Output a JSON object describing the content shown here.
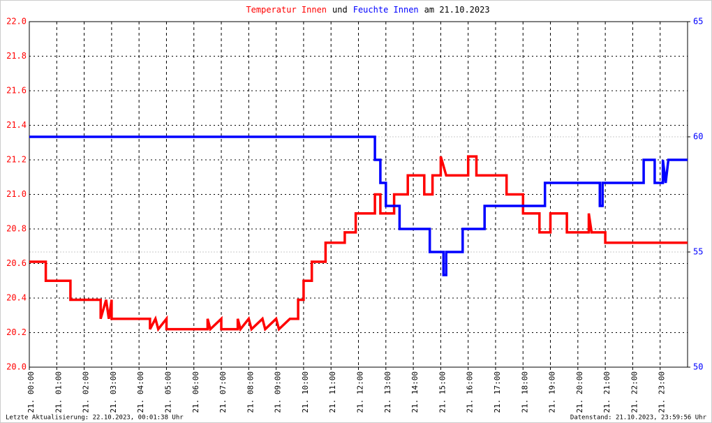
{
  "chart_data": {
    "type": "line",
    "title": [
      "Temperatur Innen",
      "und",
      "Feuchte Innen",
      "am 21.10.2023"
    ],
    "title_colors": [
      "#ff0000",
      "#000000",
      "#0000ff",
      "#000000"
    ],
    "xlim": [
      0,
      24
    ],
    "xticks": [
      {
        "value": 0,
        "label": "21. 00:00"
      },
      {
        "value": 1,
        "label": "21. 01:00"
      },
      {
        "value": 2,
        "label": "21. 02:00"
      },
      {
        "value": 3,
        "label": "21. 03:00"
      },
      {
        "value": 4,
        "label": "21. 04:00"
      },
      {
        "value": 5,
        "label": "21. 05:00"
      },
      {
        "value": 6,
        "label": "21. 06:00"
      },
      {
        "value": 7,
        "label": "21. 07:00"
      },
      {
        "value": 8,
        "label": "21. 08:00"
      },
      {
        "value": 9,
        "label": "21. 09:00"
      },
      {
        "value": 10,
        "label": "21. 10:00"
      },
      {
        "value": 11,
        "label": "21. 11:00"
      },
      {
        "value": 12,
        "label": "21. 12:00"
      },
      {
        "value": 13,
        "label": "21. 13:00"
      },
      {
        "value": 14,
        "label": "21. 14:00"
      },
      {
        "value": 15,
        "label": "21. 15:00"
      },
      {
        "value": 16,
        "label": "21. 16:00"
      },
      {
        "value": 17,
        "label": "21. 17:00"
      },
      {
        "value": 18,
        "label": "21. 18:00"
      },
      {
        "value": 19,
        "label": "21. 19:00"
      },
      {
        "value": 20,
        "label": "21. 20:00"
      },
      {
        "value": 21,
        "label": "21. 21:00"
      },
      {
        "value": 22,
        "label": "21. 22:00"
      },
      {
        "value": 23,
        "label": "21. 23:00"
      }
    ],
    "ylim": [
      20,
      22
    ],
    "yticks": [
      {
        "value": 20,
        "label": "20.0"
      },
      20.2,
      20.4,
      20.6,
      20.8,
      {
        "value": 21,
        "label": "21.0"
      },
      21.2,
      21.4,
      21.6,
      21.8,
      {
        "value": 22,
        "label": "22.0"
      }
    ],
    "y2lim": [
      50,
      65
    ],
    "y2ticks": [
      50,
      55,
      60,
      65
    ],
    "grid": true,
    "series": [
      {
        "color": "#ff0000",
        "axis": "y",
        "x": [
          0,
          0.6,
          0.6,
          1.5,
          1.5,
          2.6,
          2.6,
          2.8,
          2.9,
          3.0,
          3.0,
          4.4,
          4.4,
          4.6,
          4.7,
          5.0,
          5.0,
          6.5,
          6.5,
          6.6,
          7.0,
          7.0,
          7.6,
          7.6,
          7.7,
          8.0,
          8.1,
          8.5,
          8.6,
          9.0,
          9.1,
          9.5,
          9.8,
          9.8,
          10.0,
          10.0,
          10.3,
          10.3,
          10.8,
          10.8,
          11.5,
          11.5,
          11.9,
          11.9,
          12.6,
          12.6,
          12.8,
          12.8,
          13.3,
          13.3,
          13.8,
          13.8,
          14.4,
          14.4,
          14.7,
          14.7,
          15.0,
          15.0,
          15.2,
          16.0,
          16.0,
          16.3,
          16.3,
          17.4,
          17.4,
          18.0,
          18.0,
          18.6,
          18.6,
          19.0,
          19.0,
          19.6,
          19.6,
          20.4,
          20.4,
          20.5,
          21.0,
          21.0,
          24
        ],
        "values": [
          20.61,
          20.61,
          20.5,
          20.5,
          20.39,
          20.39,
          20.28,
          20.39,
          20.28,
          20.39,
          20.28,
          20.28,
          20.22,
          20.28,
          20.22,
          20.28,
          20.22,
          20.22,
          20.28,
          20.22,
          20.28,
          20.22,
          20.22,
          20.28,
          20.22,
          20.28,
          20.22,
          20.28,
          20.22,
          20.28,
          20.22,
          20.28,
          20.28,
          20.39,
          20.39,
          20.5,
          20.5,
          20.61,
          20.61,
          20.72,
          20.72,
          20.78,
          20.78,
          20.89,
          20.89,
          21.0,
          21.0,
          20.89,
          20.89,
          21.0,
          21.0,
          21.11,
          21.11,
          21.0,
          21.0,
          21.11,
          21.11,
          21.22,
          21.11,
          21.11,
          21.22,
          21.22,
          21.11,
          21.11,
          21.0,
          21.0,
          20.89,
          20.89,
          20.78,
          20.78,
          20.89,
          20.89,
          20.78,
          20.78,
          20.89,
          20.78,
          20.78,
          20.72,
          20.72
        ]
      },
      {
        "color": "#0000ff",
        "axis": "y2",
        "x": [
          0,
          12.6,
          12.6,
          12.8,
          12.8,
          13.0,
          13.0,
          13.5,
          13.5,
          14.6,
          14.6,
          15.1,
          15.1,
          15.2,
          15.2,
          15.8,
          15.8,
          16.6,
          16.6,
          18.8,
          18.8,
          20.8,
          20.8,
          20.9,
          20.9,
          22.4,
          22.4,
          22.8,
          22.8,
          23.1,
          23.1,
          23.2,
          23.3,
          24
        ],
        "values": [
          60,
          60,
          59,
          59,
          58,
          58,
          57,
          57,
          56,
          56,
          55,
          55,
          54,
          54,
          55,
          55,
          56,
          56,
          57,
          57,
          58,
          58,
          57,
          57,
          58,
          58,
          59,
          59,
          58,
          58,
          59,
          58,
          59,
          59
        ]
      }
    ],
    "footer_left": "Letzte Aktualisierung: 22.10.2023, 00:01:38 Uhr",
    "footer_right": "Datenstand: 21.10.2023, 23:59:56 Uhr"
  }
}
